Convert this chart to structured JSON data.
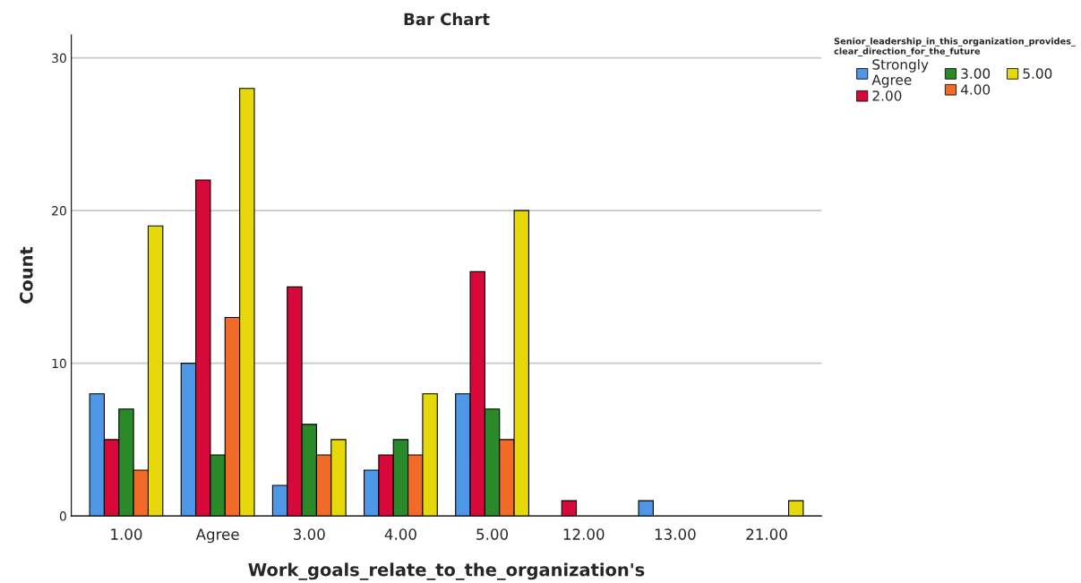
{
  "chart_data": {
    "type": "bar",
    "title": "Bar Chart",
    "xlabel": "Work_goals_relate_to_the_organization's",
    "ylabel": "Count",
    "legend_title": "Senior_leadership_in_this_organization_provides_\nclear_direction_for_the_future",
    "categories": [
      "1.00",
      "Agree",
      "3.00",
      "4.00",
      "5.00",
      "12.00",
      "13.00",
      "21.00"
    ],
    "series": [
      {
        "name": "Strongly\nAgree",
        "color": "#4e96e6",
        "values": [
          8,
          10,
          2,
          3,
          8,
          null,
          1,
          null
        ]
      },
      {
        "name": "2.00",
        "color": "#d7083a",
        "values": [
          5,
          22,
          15,
          4,
          16,
          1,
          null,
          null
        ]
      },
      {
        "name": "3.00",
        "color": "#2a8a2a",
        "values": [
          7,
          4,
          6,
          5,
          7,
          null,
          null,
          null
        ]
      },
      {
        "name": "4.00",
        "color": "#f26a28",
        "values": [
          3,
          13,
          4,
          4,
          5,
          null,
          null,
          null
        ]
      },
      {
        "name": "5.00",
        "color": "#e6d80a",
        "values": [
          19,
          28,
          5,
          8,
          20,
          null,
          null,
          1
        ]
      }
    ],
    "ylim": [
      0,
      31.5
    ],
    "yticks": [
      0,
      10,
      20,
      30
    ],
    "grid": "y",
    "legend": "top right"
  }
}
